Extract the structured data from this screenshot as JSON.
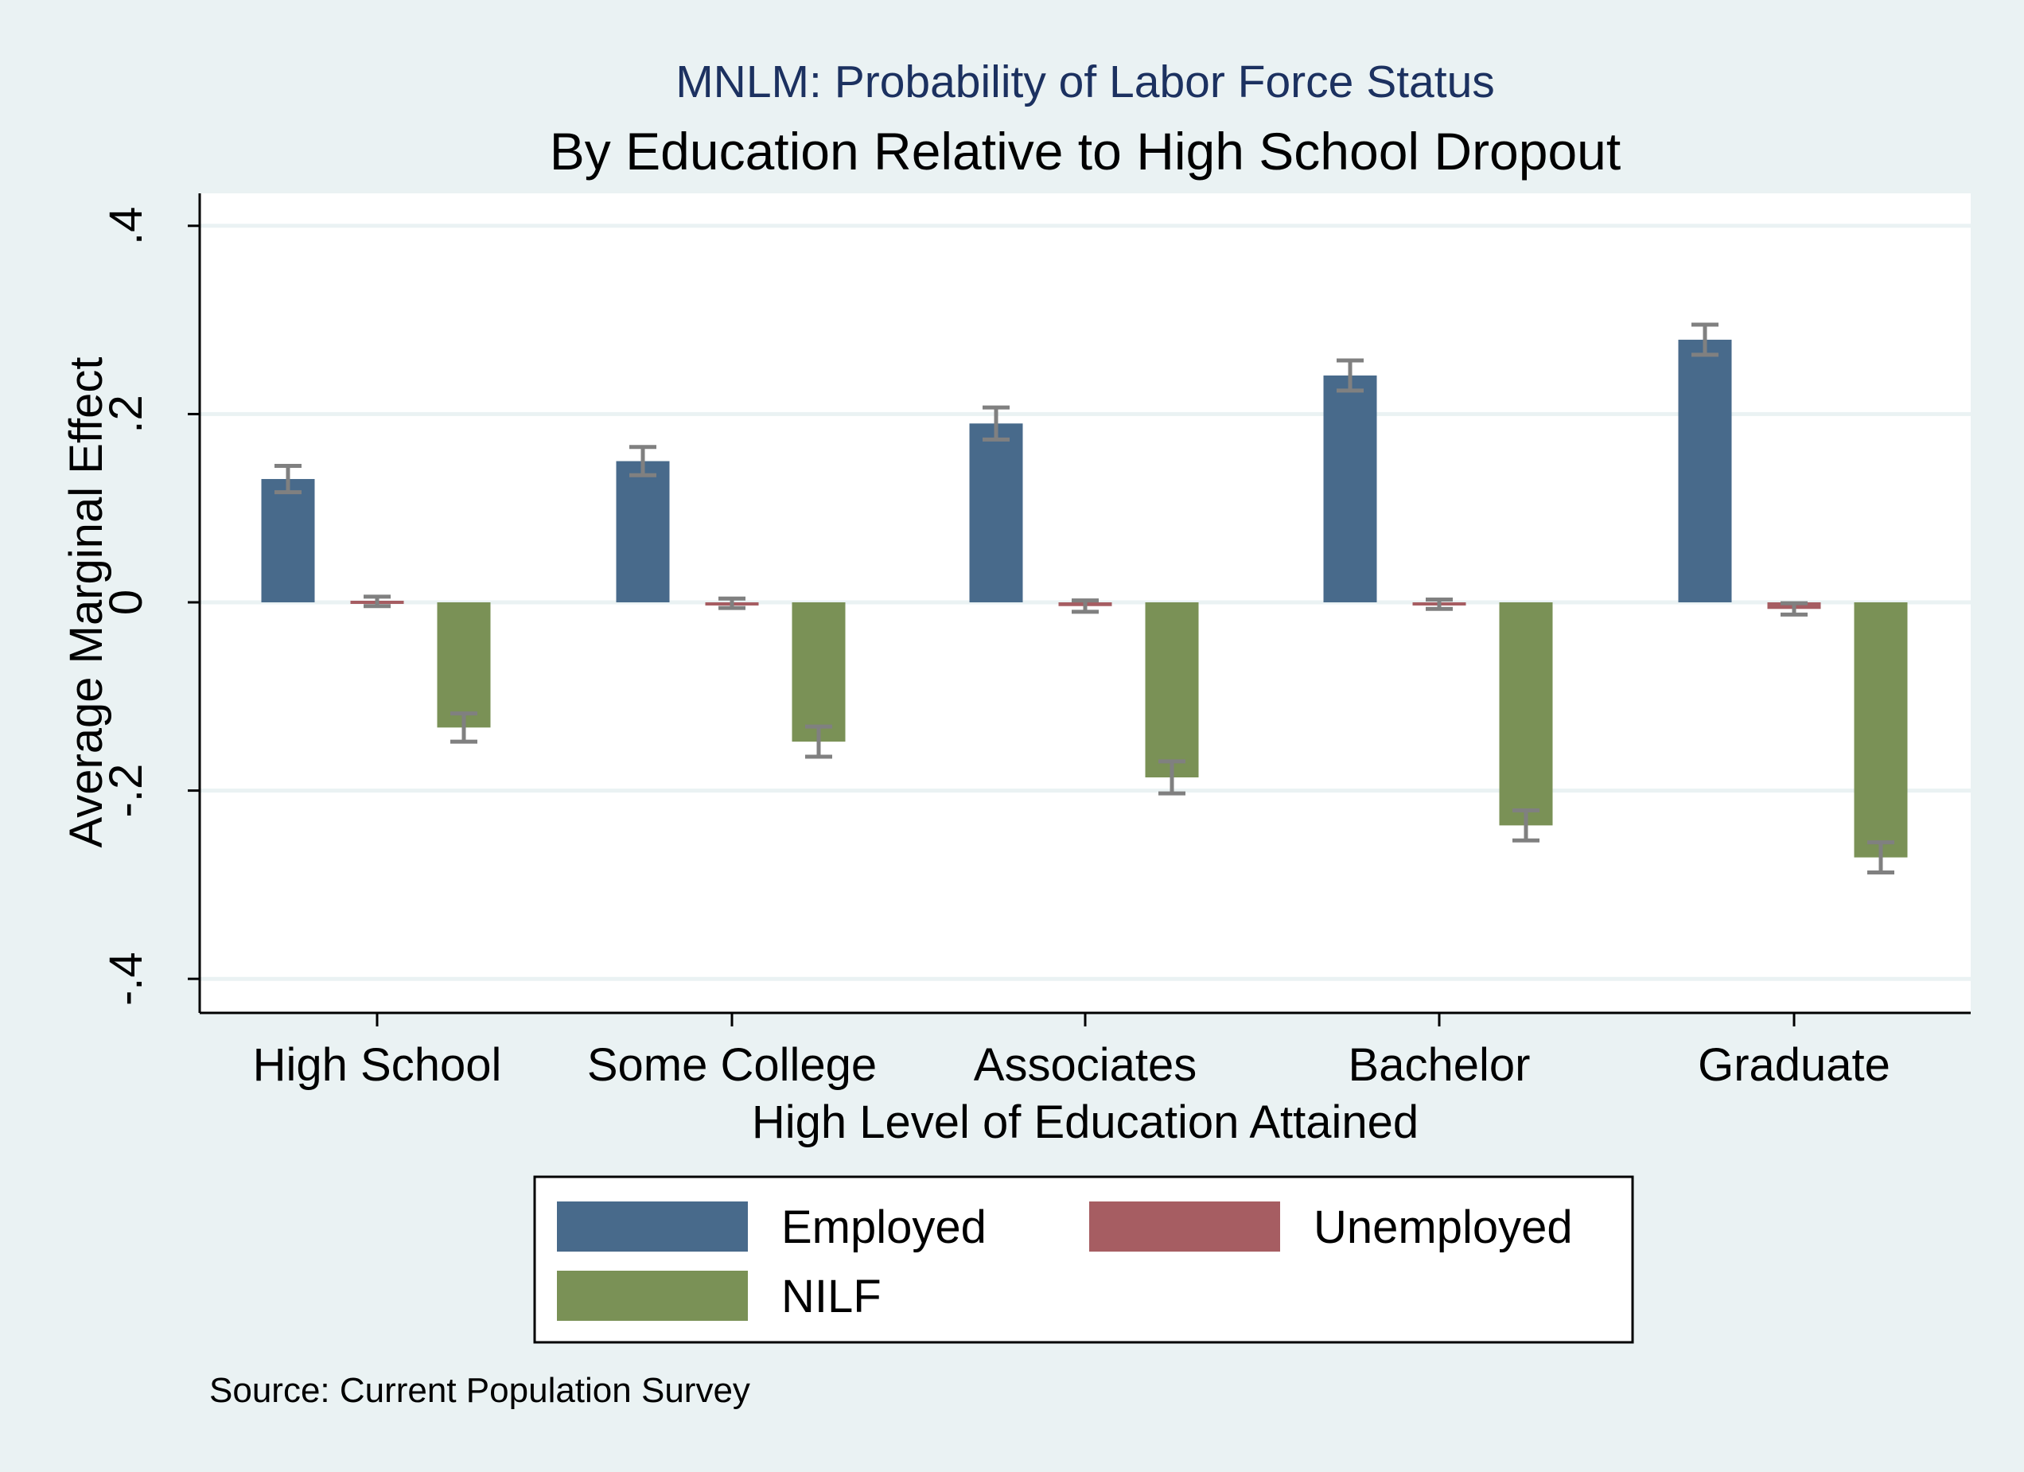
{
  "chart_data": {
    "type": "bar",
    "title": "MNLM: Probability of Labor Force Status",
    "subtitle": "By Education Relative to High School Dropout",
    "xlabel": "High Level of Education Attained",
    "ylabel": "Average Marginal Effect",
    "note": "Source: Current Population Survey",
    "categories": [
      "High School",
      "Some College",
      "Associates",
      "Bachelor",
      "Graduate"
    ],
    "ylim": [
      -0.42,
      0.44
    ],
    "yticks": [
      -0.4,
      -0.2,
      0,
      0.2,
      0.4
    ],
    "ytick_labels": [
      "-.4",
      "-.2",
      "0",
      ".2",
      ".4"
    ],
    "grid": true,
    "legend_placement": "bottom",
    "series": [
      {
        "name": "Employed",
        "color": "#486a8b",
        "values": [
          0.131,
          0.15,
          0.19,
          0.241,
          0.279
        ],
        "ci_half": [
          0.014,
          0.015,
          0.017,
          0.016,
          0.016
        ]
      },
      {
        "name": "Unemployed",
        "color": "#a65d62",
        "values": [
          0.001,
          -0.001,
          -0.004,
          -0.002,
          -0.007
        ],
        "ci_half": [
          0.005,
          0.005,
          0.006,
          0.005,
          0.006
        ]
      },
      {
        "name": "NILF",
        "color": "#7a9156",
        "values": [
          -0.133,
          -0.148,
          -0.186,
          -0.237,
          -0.271
        ],
        "ci_half": [
          0.015,
          0.016,
          0.017,
          0.016,
          0.016
        ]
      }
    ],
    "errorbar_color": "#808080"
  }
}
